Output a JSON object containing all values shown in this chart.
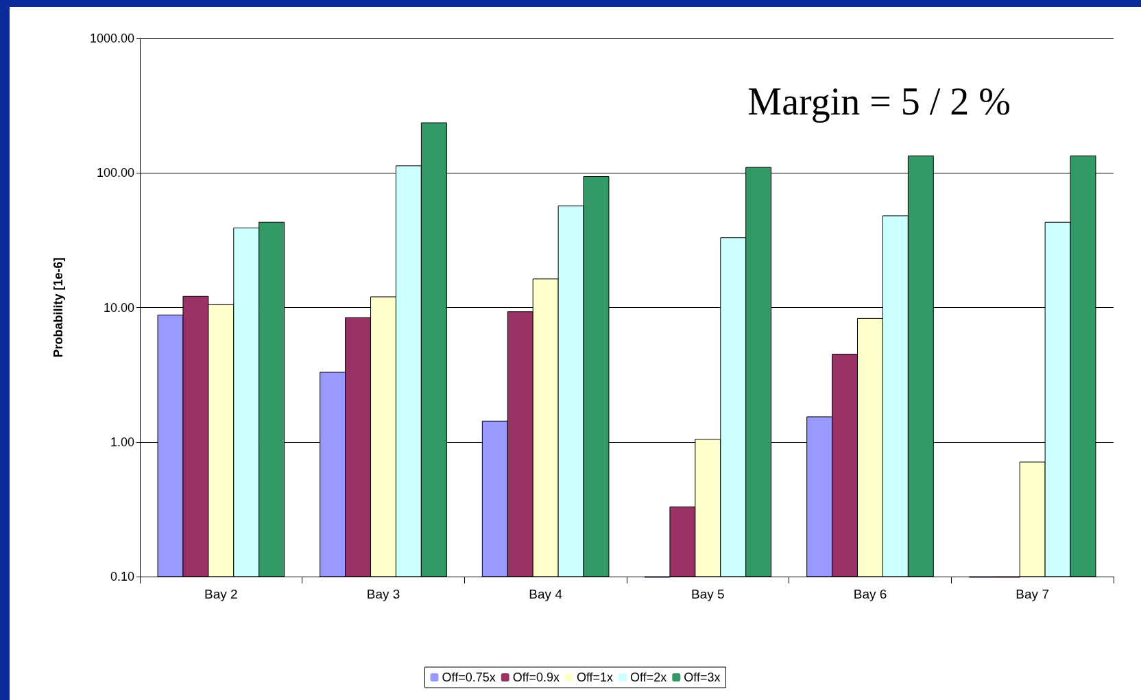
{
  "chart_data": {
    "type": "bar",
    "ylabel": "Probability [1e-6]",
    "categories": [
      "Bay 2",
      "Bay 3",
      "Bay 4",
      "Bay 5",
      "Bay 6",
      "Bay 7"
    ],
    "series": [
      {
        "name": "Off=0.75x",
        "color": "#9999ff",
        "values": [
          8.8,
          3.3,
          1.43,
          0.1,
          1.54,
          0.1
        ]
      },
      {
        "name": "Off=0.9x",
        "color": "#993366",
        "values": [
          12.1,
          8.4,
          9.3,
          0.33,
          4.5,
          0.1
        ]
      },
      {
        "name": "Off=1x",
        "color": "#ffffcc",
        "values": [
          10.5,
          12,
          16.3,
          1.05,
          8.3,
          0.71
        ]
      },
      {
        "name": "Off=2x",
        "color": "#ccffff",
        "values": [
          39,
          113,
          57,
          33,
          48,
          43
        ]
      },
      {
        "name": "Off=3x",
        "color": "#339966",
        "values": [
          43,
          236,
          94,
          110,
          134,
          134
        ]
      }
    ],
    "log": "y",
    "ylim": [
      0.1,
      1000
    ],
    "yticks": [
      {
        "value": 0.1,
        "label": "0.10"
      },
      {
        "value": 1,
        "label": "1.00"
      },
      {
        "value": 10,
        "label": "10.00"
      },
      {
        "value": 100,
        "label": "100.00"
      },
      {
        "value": 1000,
        "label": "1000.00"
      }
    ],
    "grid": "y",
    "legend": "bottom",
    "annotations": [
      "Margin = 5 / 2 %"
    ]
  }
}
